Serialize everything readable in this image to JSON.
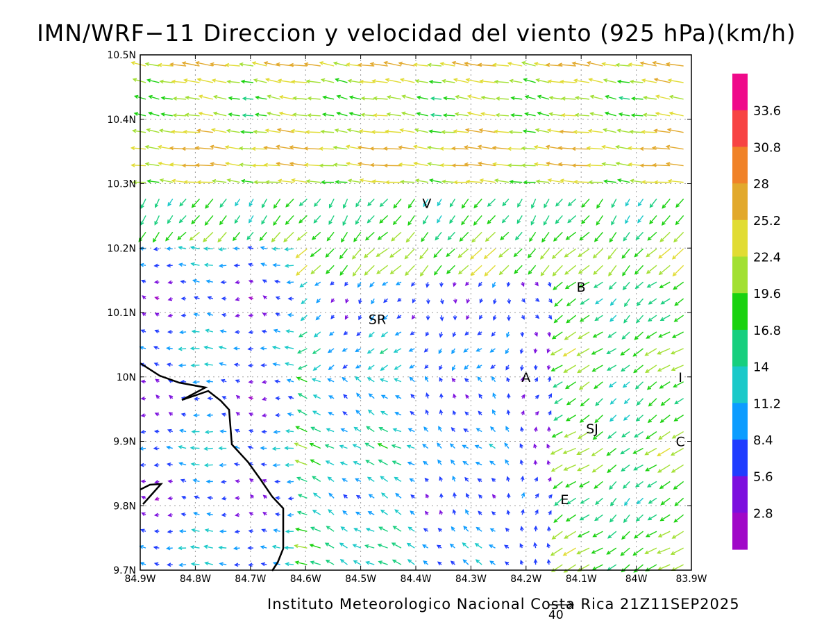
{
  "title": "IMN/WRF−11 Direccion y velocidad del viento (925 hPa)(km/h)",
  "footer": "Instituto Meteorologico Nacional Costa Rica 21Z11SEP2025",
  "reference_vector": {
    "value": "40"
  },
  "axes": {
    "x_ticks": [
      "84.9W",
      "84.8W",
      "84.7W",
      "84.6W",
      "84.5W",
      "84.4W",
      "84.3W",
      "84.2W",
      "84.1W",
      "84W",
      "83.9W"
    ],
    "y_ticks": [
      "10.5N",
      "10.4N",
      "10.3N",
      "10.2N",
      "10.1N",
      "10N",
      "9.9N",
      "9.8N",
      "9.7N"
    ],
    "lon_range": [
      -84.9,
      -83.9
    ],
    "lat_range": [
      9.7,
      10.5
    ],
    "grid": true
  },
  "stations": [
    {
      "label": "V",
      "lon": -84.38,
      "lat": 10.27
    },
    {
      "label": "B",
      "lon": -84.1,
      "lat": 10.14
    },
    {
      "label": "SR",
      "lon": -84.47,
      "lat": 10.09
    },
    {
      "label": "A",
      "lon": -84.2,
      "lat": 10.0
    },
    {
      "label": "I",
      "lon": -83.92,
      "lat": 10.0
    },
    {
      "label": "SJ",
      "lon": -84.08,
      "lat": 9.92
    },
    {
      "label": "C",
      "lon": -83.92,
      "lat": 9.9
    },
    {
      "label": "E",
      "lon": -84.13,
      "lat": 9.81
    }
  ],
  "colorbar": {
    "labels": [
      "33.6",
      "30.8",
      "28",
      "25.2",
      "22.4",
      "19.6",
      "16.8",
      "14",
      "11.2",
      "8.4",
      "5.6",
      "2.8"
    ],
    "colors": [
      "#ef0a8a",
      "#f74343",
      "#f08228",
      "#e2a92c",
      "#e1dc33",
      "#a2e032",
      "#1ad20f",
      "#17cf7e",
      "#1ac9c9",
      "#0c9cff",
      "#1f3cff",
      "#7c0fde",
      "#a008c8"
    ]
  }
}
